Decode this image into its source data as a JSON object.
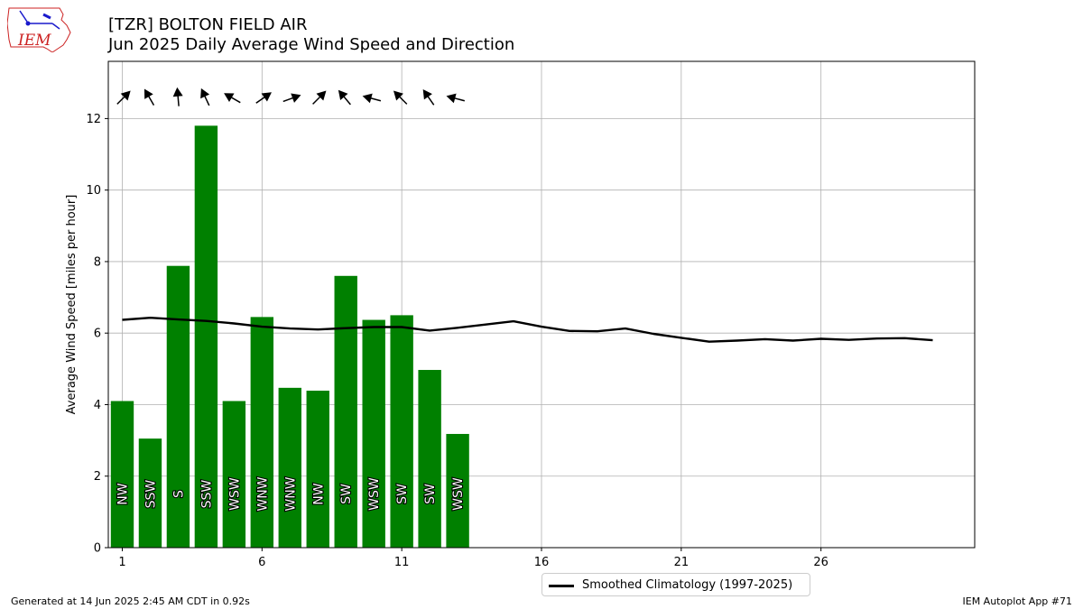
{
  "header": {
    "title": "[TZR] BOLTON FIELD AIR",
    "subtitle": "Jun 2025 Daily Average Wind Speed and Direction",
    "logo_text": "IEM"
  },
  "footer": {
    "left": "Generated at 14 Jun 2025 2:45 AM CDT in 0.92s",
    "right": "IEM Autoplot App #71"
  },
  "colors": {
    "bar": "#008000",
    "climatology": "#000000",
    "grid": "#b0b0b0",
    "logo": "#cc2222",
    "logo_accent": "#1a1acc"
  },
  "chart_data": {
    "type": "bar",
    "ylabel": "Average Wind Speed [miles per hour]",
    "xlabel": "",
    "xlim": [
      0.5,
      31.5
    ],
    "ylim": [
      0,
      13.6
    ],
    "xticks": [
      1,
      6,
      11,
      16,
      21,
      26
    ],
    "yticks": [
      0,
      2,
      4,
      6,
      8,
      10,
      12
    ],
    "grid": true,
    "legend_position": "bottom-center",
    "days": [
      1,
      2,
      3,
      4,
      5,
      6,
      7,
      8,
      9,
      10,
      11,
      12,
      13
    ],
    "speeds": [
      4.1,
      3.05,
      7.88,
      11.8,
      4.1,
      6.45,
      4.47,
      4.39,
      7.6,
      6.37,
      6.5,
      4.97,
      3.18
    ],
    "directions": [
      "NW",
      "SSW",
      "S",
      "SSW",
      "WSW",
      "WNW",
      "WNW",
      "NW",
      "SW",
      "WSW",
      "SW",
      "SW",
      "WSW"
    ],
    "arrow_angles_deg": [
      45,
      -30,
      -5,
      -25,
      -60,
      55,
      70,
      45,
      -40,
      -75,
      -45,
      -35,
      -75
    ],
    "series": [
      {
        "name": "Smoothed Climatology (1997-2025)",
        "type": "line",
        "x": [
          1,
          2,
          3,
          4,
          5,
          6,
          7,
          8,
          9,
          10,
          11,
          12,
          13,
          14,
          15,
          16,
          17,
          18,
          19,
          20,
          21,
          22,
          23,
          24,
          25,
          26,
          27,
          28,
          29,
          30
        ],
        "values": [
          6.37,
          6.43,
          6.38,
          6.34,
          6.27,
          6.18,
          6.13,
          6.1,
          6.14,
          6.17,
          6.17,
          6.07,
          6.15,
          6.24,
          6.33,
          6.18,
          6.06,
          6.05,
          6.13,
          5.98,
          5.87,
          5.76,
          5.79,
          5.83,
          5.79,
          5.84,
          5.81,
          5.85,
          5.86,
          5.8
        ]
      }
    ]
  }
}
